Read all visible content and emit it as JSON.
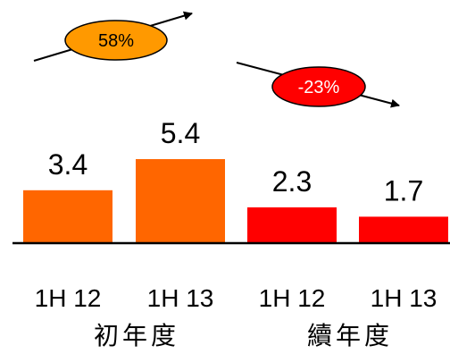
{
  "chart_data": {
    "type": "bar",
    "categories": [
      "1H 12",
      "1H 13",
      "1H 12",
      "1H 13"
    ],
    "values": [
      3.4,
      5.4,
      2.3,
      1.7
    ],
    "value_labels": [
      "3.4",
      "5.4",
      "2.3",
      "1.7"
    ],
    "groups": [
      {
        "label": "初年度",
        "color": "#ff6600",
        "change": "58%"
      },
      {
        "label": "續年度",
        "color": "#ff0000",
        "change": "-23%"
      }
    ],
    "bar_colors": [
      "#ff6600",
      "#ff6600",
      "#ff0000",
      "#ff0000"
    ],
    "ylim": [
      0,
      5.4
    ],
    "grid": false
  }
}
